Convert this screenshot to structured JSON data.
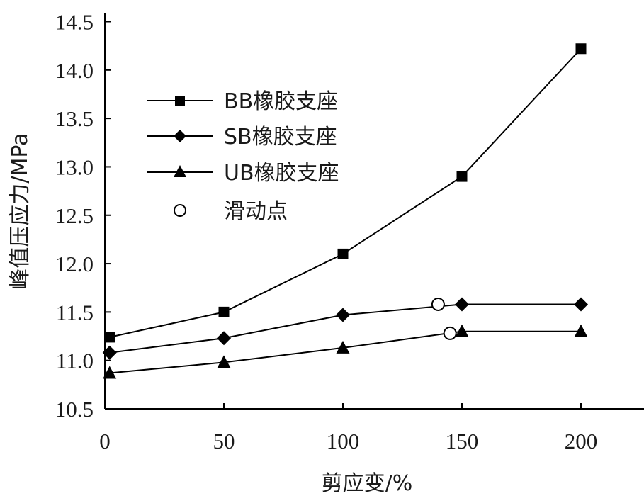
{
  "chart_data": {
    "type": "line",
    "title": "",
    "xlabel": "剪应变/%",
    "ylabel": "峰值压应力/MPa",
    "xlim": [
      0,
      225
    ],
    "ylim": [
      10.5,
      14.5
    ],
    "x_ticks": [
      "0",
      "50",
      "100",
      "150",
      "200"
    ],
    "y_ticks": [
      "10.5",
      "11.0",
      "11.5",
      "12.0",
      "12.5",
      "13.0",
      "13.5",
      "14.0",
      "14.5"
    ],
    "legend_position": "upper-left",
    "grid": false,
    "series": [
      {
        "name": "BB橡胶支座",
        "marker": "square",
        "x": [
          2,
          50,
          100,
          150,
          200
        ],
        "y": [
          11.24,
          11.5,
          12.1,
          12.9,
          14.22
        ]
      },
      {
        "name": "SB橡胶支座",
        "marker": "diamond",
        "x": [
          2,
          50,
          100,
          150,
          200
        ],
        "y": [
          11.08,
          11.23,
          11.47,
          11.58,
          11.58
        ]
      },
      {
        "name": "UB橡胶支座",
        "marker": "triangle",
        "x": [
          2,
          50,
          100,
          150,
          200
        ],
        "y": [
          10.87,
          10.98,
          11.13,
          11.3,
          11.3
        ]
      }
    ],
    "sliding_points": {
      "name": "滑动点",
      "marker": "open-circle",
      "x": [
        140,
        145
      ],
      "y": [
        11.58,
        11.28
      ]
    }
  }
}
